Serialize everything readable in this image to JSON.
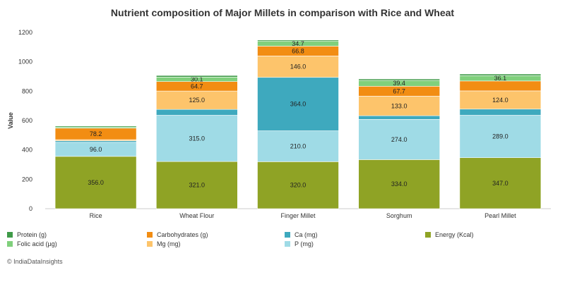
{
  "chart_data": {
    "type": "bar",
    "stacked": true,
    "title": "Nutrient composition of Major Millets in comparison with Rice and Wheat",
    "ylabel": "Value",
    "xlabel": "",
    "ylim": [
      0,
      1200
    ],
    "yticks": [
      "0",
      "200",
      "400",
      "600",
      "800",
      "1000",
      "1200"
    ],
    "categories": [
      "Rice",
      "Wheat Flour",
      "Finger Millet",
      "Sorghum",
      "Pearl Millet"
    ],
    "series": [
      {
        "name": "Energy (Kcal)",
        "color": "#8fa325",
        "values": [
          356,
          321,
          320,
          334,
          347
        ],
        "labels": [
          "356.0",
          "321.0",
          "320.0",
          "334.0",
          "347.0"
        ]
      },
      {
        "name": "P (mg)",
        "color": "#9fdbe6",
        "values": [
          96,
          315,
          210,
          274,
          289
        ],
        "labels": [
          "96.0",
          "315.0",
          "210.0",
          "274.0",
          "289.0"
        ]
      },
      {
        "name": "Ca (mg)",
        "color": "#3ea9be",
        "values": [
          10,
          40,
          364,
          25,
          42
        ],
        "labels": [
          "",
          "",
          "364.0",
          "",
          ""
        ]
      },
      {
        "name": "Mg (mg)",
        "color": "#fdc46b",
        "values": [
          8,
          125,
          146,
          133,
          124
        ],
        "labels": [
          "",
          "125.0",
          "146.0",
          "133.0",
          "124.0"
        ]
      },
      {
        "name": "Carbohydrates (g)",
        "color": "#f28d13",
        "values": [
          78.2,
          64.7,
          66.8,
          67.7,
          67.5
        ],
        "labels": [
          "78.2",
          "64.7",
          "66.8",
          "67.7",
          ""
        ]
      },
      {
        "name": "Folic acid (µg)",
        "color": "#80d07c",
        "values": [
          8,
          30.1,
          34.7,
          39.4,
          36.1
        ],
        "labels": [
          "",
          "30.1",
          "34.7",
          "39.4",
          "36.1"
        ]
      },
      {
        "name": "Protein (g)",
        "color": "#3f9a48",
        "values": [
          7,
          11,
          7,
          10,
          11
        ],
        "labels": [
          "",
          "",
          "",
          "",
          ""
        ]
      }
    ],
    "legend": {
      "placement": "bottom",
      "order": [
        "Protein (g)",
        "Carbohydrates (g)",
        "Ca (mg)",
        "Energy (Kcal)",
        "Folic acid (µg)",
        "Mg (mg)",
        "P (mg)"
      ]
    },
    "grid": false
  },
  "credit": "© IndiaDataInsights"
}
